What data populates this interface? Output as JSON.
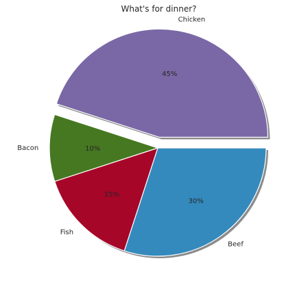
{
  "chart_data": {
    "type": "pie",
    "title": "What's for dinner?",
    "slices": [
      {
        "label": "Beef",
        "value": 30,
        "pct_label": "30%",
        "color": "#348ABD",
        "explode": 0.0
      },
      {
        "label": "Fish",
        "value": 15,
        "pct_label": "15%",
        "color": "#A60628",
        "explode": 0.0
      },
      {
        "label": "Bacon",
        "value": 10,
        "pct_label": "10%",
        "color": "#467821",
        "explode": 0.0
      },
      {
        "label": "Chicken",
        "value": 45,
        "pct_label": "45%",
        "color": "#7A68A6",
        "explode": 0.1
      }
    ],
    "start_angle_deg": 0,
    "direction": "clockwise",
    "shadow": true,
    "legend": "none"
  }
}
